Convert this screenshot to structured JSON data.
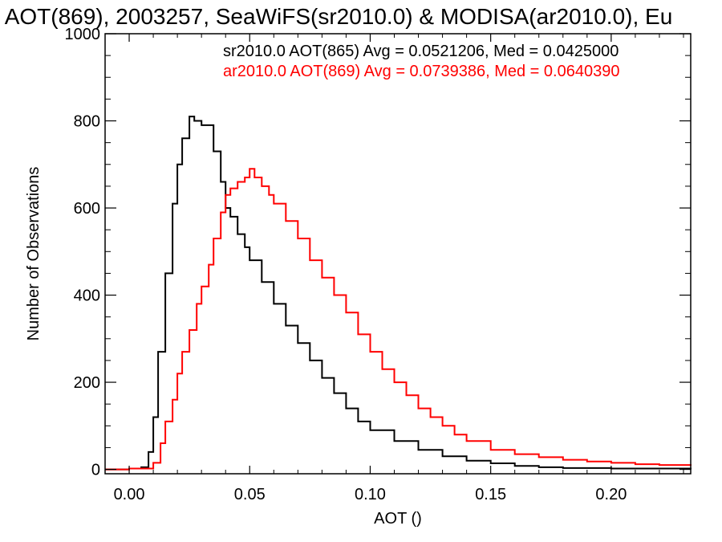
{
  "chart_data": {
    "type": "line",
    "title": "AOT(869), 2003257, SeaWiFS(sr2010.0) & MODISA(ar2010.0), Eu",
    "xlabel": "AOT ()",
    "ylabel": "Number of Observations",
    "xlim": [
      -0.01,
      0.233
    ],
    "ylim": [
      -10,
      1000
    ],
    "x_ticks": [
      0.0,
      0.05,
      0.1,
      0.15,
      0.2
    ],
    "x_tick_labels": [
      "0.00",
      "0.05",
      "0.10",
      "0.15",
      "0.20"
    ],
    "y_ticks": [
      0,
      200,
      400,
      600,
      800,
      1000
    ],
    "y_tick_labels": [
      "0",
      "200",
      "400",
      "600",
      "800",
      "1000"
    ],
    "grid": false,
    "annotations": [
      {
        "text": "sr2010.0 AOT(865) Avg = 0.0521206, Med = 0.0425000",
        "color": "#000000"
      },
      {
        "text": "ar2010.0 AOT(869) Avg = 0.0739386, Med = 0.0640390",
        "color": "#ff0000"
      }
    ],
    "series": [
      {
        "color": "#000000",
        "x": [
          -0.01,
          0.0,
          0.005,
          0.008,
          0.01,
          0.012,
          0.015,
          0.018,
          0.02,
          0.022,
          0.025,
          0.027,
          0.03,
          0.032,
          0.035,
          0.038,
          0.04,
          0.042,
          0.045,
          0.048,
          0.05,
          0.055,
          0.06,
          0.065,
          0.07,
          0.075,
          0.08,
          0.085,
          0.09,
          0.095,
          0.1,
          0.11,
          0.12,
          0.13,
          0.14,
          0.15,
          0.16,
          0.17,
          0.18,
          0.2,
          0.233
        ],
        "y": [
          0,
          2,
          5,
          40,
          120,
          270,
          450,
          610,
          700,
          760,
          810,
          800,
          790,
          790,
          730,
          660,
          600,
          580,
          540,
          510,
          480,
          430,
          380,
          330,
          290,
          250,
          210,
          175,
          140,
          110,
          90,
          65,
          45,
          30,
          20,
          14,
          8,
          5,
          3,
          2,
          0
        ]
      },
      {
        "color": "#ff0000",
        "x": [
          -0.01,
          0.0,
          0.01,
          0.013,
          0.015,
          0.018,
          0.02,
          0.022,
          0.025,
          0.028,
          0.03,
          0.033,
          0.035,
          0.038,
          0.04,
          0.042,
          0.045,
          0.048,
          0.05,
          0.052,
          0.055,
          0.058,
          0.06,
          0.065,
          0.07,
          0.075,
          0.08,
          0.085,
          0.09,
          0.095,
          0.1,
          0.105,
          0.11,
          0.115,
          0.12,
          0.125,
          0.13,
          0.135,
          0.14,
          0.15,
          0.16,
          0.17,
          0.18,
          0.19,
          0.2,
          0.21,
          0.22,
          0.233
        ],
        "y": [
          0,
          2,
          15,
          60,
          110,
          160,
          220,
          270,
          320,
          380,
          420,
          470,
          530,
          590,
          630,
          645,
          660,
          670,
          690,
          670,
          650,
          630,
          610,
          570,
          530,
          480,
          440,
          400,
          360,
          310,
          270,
          230,
          200,
          170,
          140,
          120,
          100,
          80,
          65,
          45,
          35,
          28,
          22,
          18,
          15,
          12,
          10,
          8
        ]
      }
    ]
  }
}
